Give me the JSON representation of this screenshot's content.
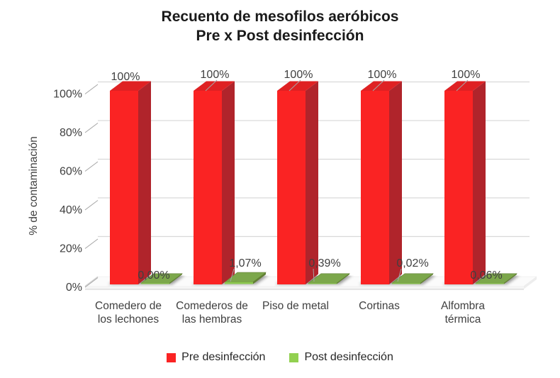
{
  "title": {
    "line1": "Recuento de mesofilos aeróbicos",
    "line2": "Pre x Post desinfección"
  },
  "chart_data": {
    "type": "bar",
    "projection": "3d",
    "title": "Recuento de mesofilos aeróbicos Pre x Post desinfección",
    "ylabel": "% de contaminación",
    "xlabel": "",
    "ylim": [
      0,
      100
    ],
    "y_ticks": [
      "0%",
      "20%",
      "40%",
      "60%",
      "80%",
      "100%"
    ],
    "grid": true,
    "legend_position": "bottom",
    "categories": [
      "Comedero de los lechones",
      "Comederos de las hembras",
      "Piso de metal",
      "Cortinas",
      "Alfombra térmica"
    ],
    "category_lines": [
      [
        "Comedero de",
        "los lechones"
      ],
      [
        "Comederos de",
        "las hembras"
      ],
      [
        "Piso de metal"
      ],
      [
        "Cortinas"
      ],
      [
        "Alfombra",
        "térmica"
      ]
    ],
    "series": [
      {
        "name": "Pre desinfección",
        "color": "#FA2323",
        "values": [
          100,
          100,
          100,
          100,
          100
        ],
        "labels": [
          "100%",
          "100%",
          "100%",
          "100%",
          "100%"
        ]
      },
      {
        "name": "Post desinfección",
        "color": "#92D050",
        "values": [
          0.0,
          1.07,
          0.39,
          0.02,
          0.06
        ],
        "labels": [
          "0,00%",
          "1,07%",
          "0,39%",
          "0,02%",
          "0,06%"
        ]
      }
    ]
  },
  "legend": {
    "items": [
      {
        "label": "Pre desinfección",
        "color": "#FA2323"
      },
      {
        "label": "Post desinfección",
        "color": "#92D050"
      }
    ]
  },
  "colors": {
    "red_front": "#FA2323",
    "red_top": "#DF2123",
    "red_side": "#B0242B",
    "green_top": "#7CA74B",
    "green_front": "#8CC84E",
    "green_side": "#627F35",
    "gridline": "#D9D9D9",
    "leader": "#A6A6A6",
    "text": "#404040"
  }
}
